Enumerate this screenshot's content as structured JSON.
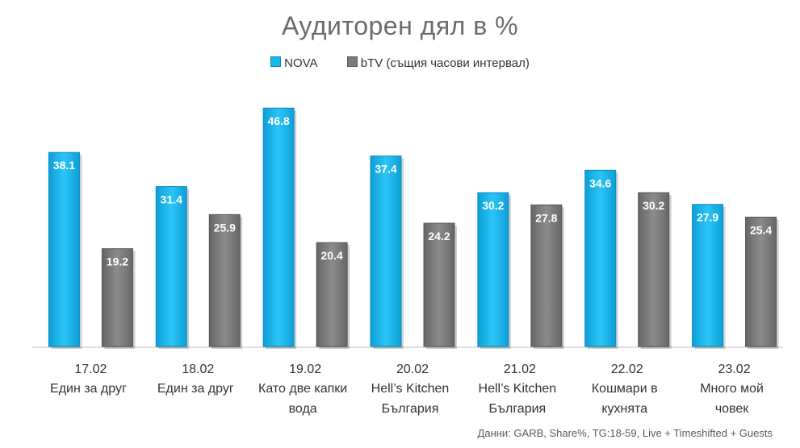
{
  "chart_data": {
    "type": "bar",
    "title": "Аудиторен дял в %",
    "categories": [
      {
        "date": "17.02",
        "lines": [
          "Един за друг"
        ]
      },
      {
        "date": "18.02",
        "lines": [
          "Един за друг"
        ]
      },
      {
        "date": "19.02",
        "lines": [
          "Като две капки",
          "вода"
        ]
      },
      {
        "date": "20.02",
        "lines": [
          "Hell’s Kitchen",
          "България"
        ]
      },
      {
        "date": "21.02",
        "lines": [
          "Hell’s Kitchen",
          "България"
        ]
      },
      {
        "date": "22.02",
        "lines": [
          "Кошмари в",
          "кухнята"
        ]
      },
      {
        "date": "23.02",
        "lines": [
          "Много мой",
          "човек"
        ]
      }
    ],
    "series": [
      {
        "name": "NOVA",
        "color": "#18b6ee",
        "values": [
          38.1,
          31.4,
          46.8,
          37.4,
          30.2,
          34.6,
          27.9
        ]
      },
      {
        "name": "bTV (същия часови интервал)",
        "color": "#7b7b7b",
        "values": [
          19.2,
          25.9,
          20.4,
          24.2,
          27.8,
          30.2,
          25.4
        ]
      }
    ],
    "xlabel": "",
    "ylabel": "",
    "ylim": [
      0,
      50
    ],
    "legend_position": "top-center",
    "grid": false,
    "source_note": "Данни: GARB, Share%, TG:18-59, Live + Timeshifted + Guests"
  }
}
